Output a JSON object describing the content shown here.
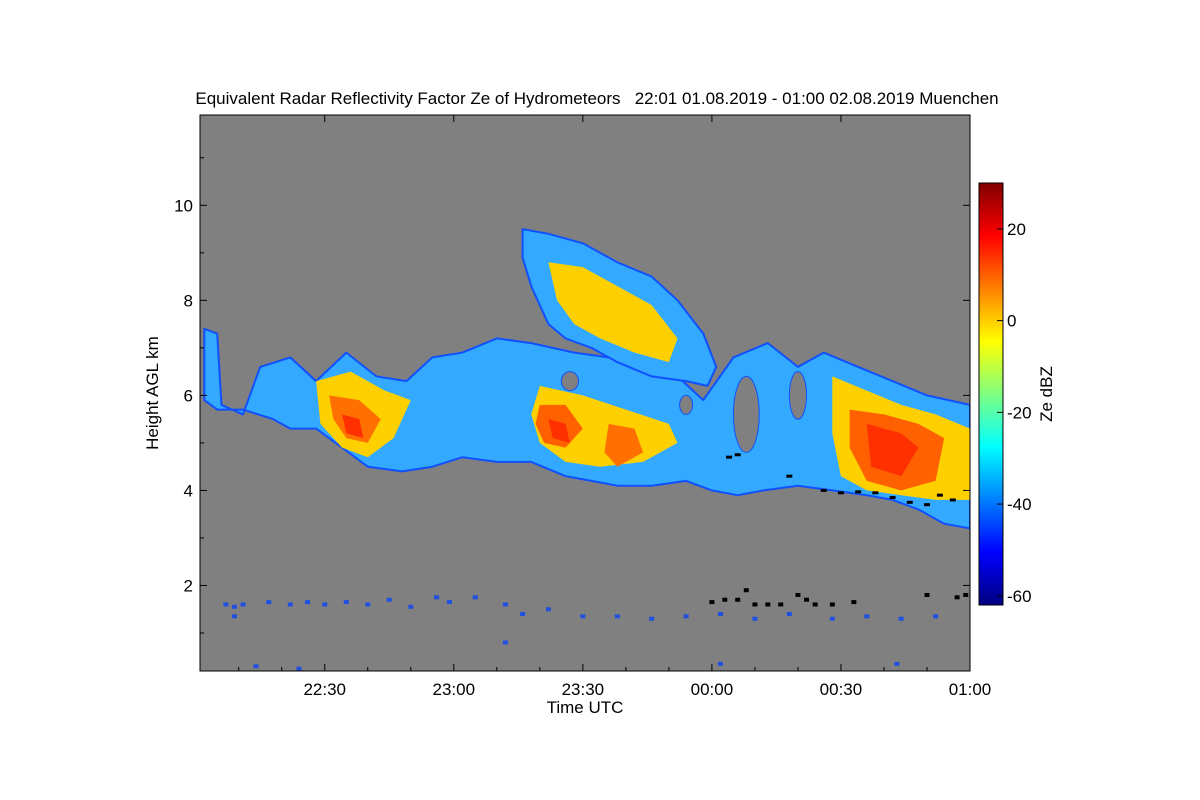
{
  "chart_data": {
    "type": "heatmap",
    "title": "Equivalent Radar Reflectivity Factor Ze of Hydrometeors   22:01 01.08.2019 - 01:00 02.08.2019 Muenchen",
    "xlabel": "Time UTC",
    "ylabel": "Height AGL km",
    "colorbar_label": "Ze dBZ",
    "x_unit": "minutes after 22:00 UTC",
    "xlim": [
      1,
      180
    ],
    "ylim": [
      0.2,
      11.9
    ],
    "clim": [
      -62,
      30
    ],
    "x_ticks": [
      {
        "value": 30,
        "label": "22:30"
      },
      {
        "value": 60,
        "label": "23:00"
      },
      {
        "value": 90,
        "label": "23:30"
      },
      {
        "value": 120,
        "label": "00:00"
      },
      {
        "value": 150,
        "label": "00:30"
      },
      {
        "value": 180,
        "label": "01:00"
      }
    ],
    "y_ticks": [
      {
        "value": 2,
        "label": "2"
      },
      {
        "value": 4,
        "label": "4"
      },
      {
        "value": 6,
        "label": "6"
      },
      {
        "value": 8,
        "label": "8"
      },
      {
        "value": 10,
        "label": "10"
      }
    ],
    "c_ticks": [
      {
        "value": -60,
        "label": "-60"
      },
      {
        "value": -40,
        "label": "-40"
      },
      {
        "value": -20,
        "label": "-20"
      },
      {
        "value": 0,
        "label": "0"
      },
      {
        "value": 20,
        "label": "20"
      }
    ],
    "no_data_color": "#808080",
    "colormap": [
      "#000080",
      "#0000ff",
      "#0080ff",
      "#00ffff",
      "#80ff80",
      "#ffff00",
      "#ff8000",
      "#ff0000",
      "#800000"
    ],
    "echo_layers": [
      {
        "name": "main cloud layer",
        "color": "#33aaff",
        "outline": [
          [
            2,
            7.4
          ],
          [
            5,
            7.3
          ],
          [
            6,
            5.8
          ],
          [
            11,
            5.6
          ],
          [
            15,
            6.6
          ],
          [
            22,
            6.8
          ],
          [
            28,
            6.3
          ],
          [
            35,
            6.9
          ],
          [
            42,
            6.4
          ],
          [
            49,
            6.3
          ],
          [
            55,
            6.8
          ],
          [
            62,
            6.9
          ],
          [
            70,
            7.2
          ],
          [
            78,
            7.1
          ],
          [
            88,
            6.9
          ],
          [
            96,
            6.8
          ],
          [
            104,
            6.6
          ],
          [
            112,
            6.4
          ],
          [
            118,
            5.9
          ],
          [
            125,
            6.8
          ],
          [
            133,
            7.1
          ],
          [
            140,
            6.6
          ],
          [
            146,
            6.9
          ],
          [
            154,
            6.6
          ],
          [
            162,
            6.3
          ],
          [
            170,
            6.0
          ],
          [
            180,
            5.8
          ],
          [
            180,
            3.2
          ],
          [
            174,
            3.3
          ],
          [
            168,
            3.6
          ],
          [
            162,
            3.8
          ],
          [
            156,
            3.9
          ],
          [
            148,
            4.0
          ],
          [
            140,
            4.1
          ],
          [
            132,
            4.0
          ],
          [
            126,
            3.9
          ],
          [
            120,
            4.0
          ],
          [
            114,
            4.2
          ],
          [
            106,
            4.1
          ],
          [
            98,
            4.1
          ],
          [
            92,
            4.2
          ],
          [
            86,
            4.3
          ],
          [
            78,
            4.6
          ],
          [
            70,
            4.6
          ],
          [
            62,
            4.7
          ],
          [
            55,
            4.5
          ],
          [
            48,
            4.4
          ],
          [
            40,
            4.5
          ],
          [
            34,
            4.9
          ],
          [
            28,
            5.3
          ],
          [
            22,
            5.3
          ],
          [
            18,
            5.5
          ],
          [
            11,
            5.7
          ],
          [
            5,
            5.7
          ],
          [
            2,
            5.9
          ]
        ]
      },
      {
        "name": "upper plume",
        "color": "#33aaff",
        "outline": [
          [
            76,
            9.5
          ],
          [
            82,
            9.4
          ],
          [
            90,
            9.2
          ],
          [
            98,
            8.8
          ],
          [
            106,
            8.5
          ],
          [
            112,
            8.0
          ],
          [
            118,
            7.3
          ],
          [
            121,
            6.6
          ],
          [
            119,
            6.2
          ],
          [
            114,
            6.3
          ],
          [
            106,
            6.4
          ],
          [
            98,
            6.7
          ],
          [
            92,
            7.0
          ],
          [
            86,
            7.2
          ],
          [
            82,
            7.5
          ],
          [
            78,
            8.3
          ],
          [
            76,
            8.9
          ]
        ]
      },
      {
        "name": "core 1",
        "color": "#ffd000",
        "outline": [
          [
            28,
            6.3
          ],
          [
            36,
            6.5
          ],
          [
            44,
            6.1
          ],
          [
            50,
            5.9
          ],
          [
            46,
            5.1
          ],
          [
            40,
            4.7
          ],
          [
            34,
            4.9
          ],
          [
            29,
            5.4
          ]
        ]
      },
      {
        "name": "core 2",
        "color": "#ffd000",
        "outline": [
          [
            80,
            6.2
          ],
          [
            90,
            6.0
          ],
          [
            100,
            5.7
          ],
          [
            110,
            5.4
          ],
          [
            112,
            5.0
          ],
          [
            104,
            4.6
          ],
          [
            94,
            4.5
          ],
          [
            86,
            4.6
          ],
          [
            80,
            5.0
          ],
          [
            78,
            5.6
          ]
        ]
      },
      {
        "name": "core 3",
        "color": "#ffd000",
        "outline": [
          [
            148,
            6.4
          ],
          [
            156,
            6.1
          ],
          [
            164,
            5.8
          ],
          [
            172,
            5.6
          ],
          [
            180,
            5.3
          ],
          [
            180,
            3.8
          ],
          [
            172,
            3.8
          ],
          [
            164,
            3.9
          ],
          [
            156,
            4.0
          ],
          [
            150,
            4.3
          ],
          [
            148,
            5.2
          ]
        ]
      },
      {
        "name": "plume core",
        "color": "#ffd000",
        "outline": [
          [
            82,
            8.8
          ],
          [
            90,
            8.7
          ],
          [
            98,
            8.3
          ],
          [
            106,
            7.9
          ],
          [
            112,
            7.2
          ],
          [
            110,
            6.7
          ],
          [
            102,
            6.9
          ],
          [
            94,
            7.2
          ],
          [
            88,
            7.5
          ],
          [
            84,
            8.0
          ]
        ]
      },
      {
        "name": "strong 1",
        "color": "#ff7000",
        "outline": [
          [
            31,
            6.0
          ],
          [
            38,
            5.9
          ],
          [
            43,
            5.5
          ],
          [
            40,
            5.0
          ],
          [
            35,
            5.1
          ],
          [
            32,
            5.5
          ]
        ]
      },
      {
        "name": "strong 2",
        "color": "#ff6000",
        "outline": [
          [
            80,
            5.8
          ],
          [
            86,
            5.8
          ],
          [
            90,
            5.3
          ],
          [
            86,
            4.9
          ],
          [
            81,
            5.0
          ],
          [
            79,
            5.4
          ]
        ]
      },
      {
        "name": "strong 3",
        "color": "#ff7000",
        "outline": [
          [
            96,
            5.4
          ],
          [
            102,
            5.3
          ],
          [
            104,
            4.8
          ],
          [
            98,
            4.5
          ],
          [
            95,
            4.8
          ]
        ]
      },
      {
        "name": "strong 4",
        "color": "#ff6000",
        "outline": [
          [
            152,
            5.7
          ],
          [
            160,
            5.6
          ],
          [
            168,
            5.4
          ],
          [
            174,
            5.1
          ],
          [
            172,
            4.2
          ],
          [
            164,
            4.0
          ],
          [
            156,
            4.2
          ],
          [
            152,
            4.9
          ]
        ]
      },
      {
        "name": "peak 1",
        "color": "#ff3000",
        "outline": [
          [
            34,
            5.6
          ],
          [
            38,
            5.5
          ],
          [
            39,
            5.1
          ],
          [
            35,
            5.2
          ]
        ]
      },
      {
        "name": "peak 2",
        "color": "#ff3000",
        "outline": [
          [
            82,
            5.5
          ],
          [
            86,
            5.4
          ],
          [
            87,
            5.0
          ],
          [
            83,
            5.1
          ]
        ]
      },
      {
        "name": "peak 3",
        "color": "#ff3000",
        "outline": [
          [
            156,
            5.4
          ],
          [
            164,
            5.2
          ],
          [
            168,
            4.9
          ],
          [
            164,
            4.3
          ],
          [
            157,
            4.5
          ]
        ]
      }
    ],
    "gaps": [
      {
        "t": 87,
        "z": 6.3,
        "dt": 2,
        "dz": 0.2
      },
      {
        "t": 114,
        "z": 5.8,
        "dt": 1.5,
        "dz": 0.2
      },
      {
        "t": 128,
        "z": 5.6,
        "dt": 3,
        "dz": 0.8
      },
      {
        "t": 140,
        "z": 6.0,
        "dt": 2,
        "dz": 0.5
      }
    ],
    "melting_layer_marks": [
      [
        124,
        4.7
      ],
      [
        126,
        4.75
      ],
      [
        138,
        4.3
      ],
      [
        146,
        4.0
      ],
      [
        150,
        3.95
      ],
      [
        154,
        3.97
      ],
      [
        158,
        3.95
      ],
      [
        162,
        3.85
      ],
      [
        166,
        3.75
      ],
      [
        170,
        3.7
      ],
      [
        173,
        3.9
      ],
      [
        176,
        3.8
      ]
    ],
    "low_clutter": {
      "color": "#2050e0",
      "points": [
        [
          7,
          1.6
        ],
        [
          9,
          1.55
        ],
        [
          11,
          1.6
        ],
        [
          17,
          1.65
        ],
        [
          22,
          1.6
        ],
        [
          26,
          1.65
        ],
        [
          30,
          1.6
        ],
        [
          35,
          1.65
        ],
        [
          40,
          1.6
        ],
        [
          45,
          1.7
        ],
        [
          50,
          1.55
        ],
        [
          56,
          1.75
        ],
        [
          59,
          1.65
        ],
        [
          65,
          1.75
        ],
        [
          72,
          1.6
        ],
        [
          76,
          1.4
        ],
        [
          82,
          1.5
        ],
        [
          90,
          1.35
        ],
        [
          98,
          1.35
        ],
        [
          106,
          1.3
        ],
        [
          114,
          1.35
        ],
        [
          122,
          1.4
        ],
        [
          130,
          1.3
        ],
        [
          138,
          1.4
        ],
        [
          148,
          1.3
        ],
        [
          156,
          1.35
        ],
        [
          164,
          1.3
        ],
        [
          172,
          1.35
        ],
        [
          9,
          1.35
        ],
        [
          14,
          0.3
        ],
        [
          24,
          0.25
        ],
        [
          72,
          0.8
        ],
        [
          122,
          0.35
        ],
        [
          163,
          0.35
        ]
      ]
    },
    "low_clutter_black": {
      "color": "#000000",
      "points": [
        [
          120,
          1.65
        ],
        [
          123,
          1.7
        ],
        [
          126,
          1.7
        ],
        [
          128,
          1.9
        ],
        [
          130,
          1.6
        ],
        [
          133,
          1.6
        ],
        [
          136,
          1.6
        ],
        [
          140,
          1.8
        ],
        [
          142,
          1.7
        ],
        [
          144,
          1.6
        ],
        [
          148,
          1.6
        ],
        [
          153,
          1.65
        ],
        [
          170,
          1.8
        ],
        [
          177,
          1.75
        ],
        [
          179,
          1.8
        ]
      ]
    }
  }
}
